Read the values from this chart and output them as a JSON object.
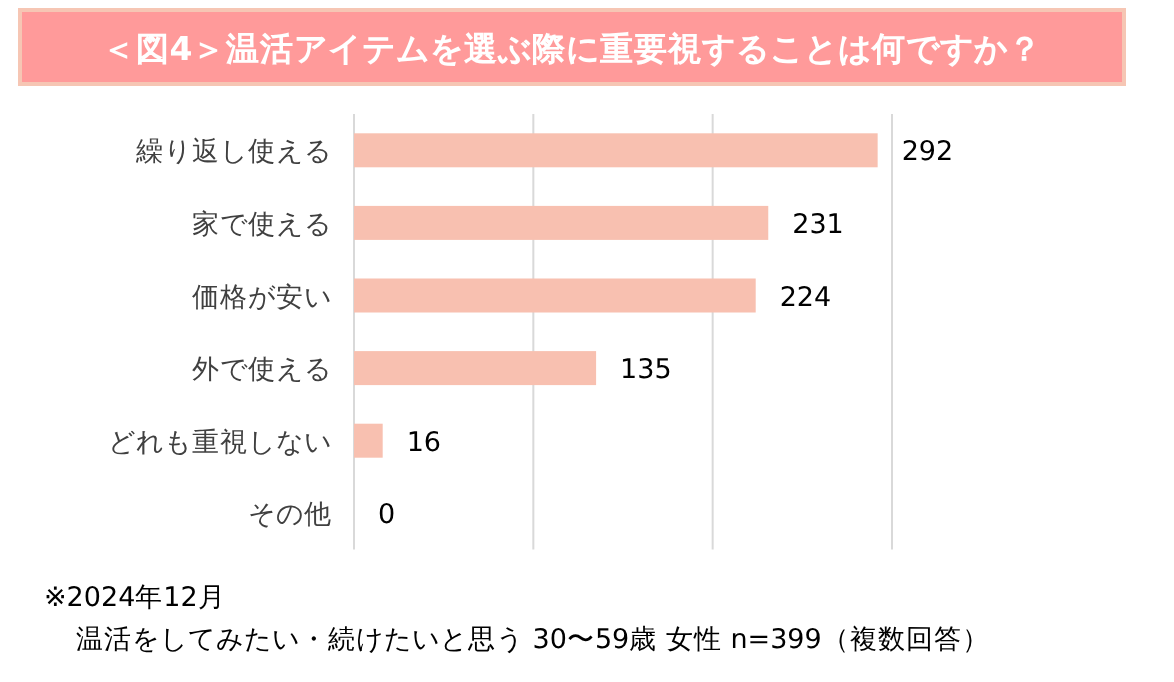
{
  "chart_data": {
    "type": "bar",
    "orientation": "horizontal",
    "title": "＜図4＞温活アイテムを選ぶ際に重要視することは何ですか？",
    "categories": [
      "繰り返し使える",
      "家で使える",
      "価格が安い",
      "外で使える",
      "どれも重視しない",
      "その他"
    ],
    "values": [
      292,
      231,
      224,
      135,
      16,
      0
    ],
    "color": "#f8c0b0",
    "xlim": [
      0,
      300
    ],
    "xticks": [
      {
        "value": 0,
        "label": null
      },
      {
        "value": 100,
        "label": null
      },
      {
        "value": 200,
        "label": null
      },
      {
        "value": 300,
        "label": null
      }
    ],
    "grid": "x",
    "data_labels": true,
    "annotations": [
      "※2024年12月",
      "温活をしてみたい・続けたいと思う 30〜59歳 女性 n=399（複数回答）"
    ]
  }
}
